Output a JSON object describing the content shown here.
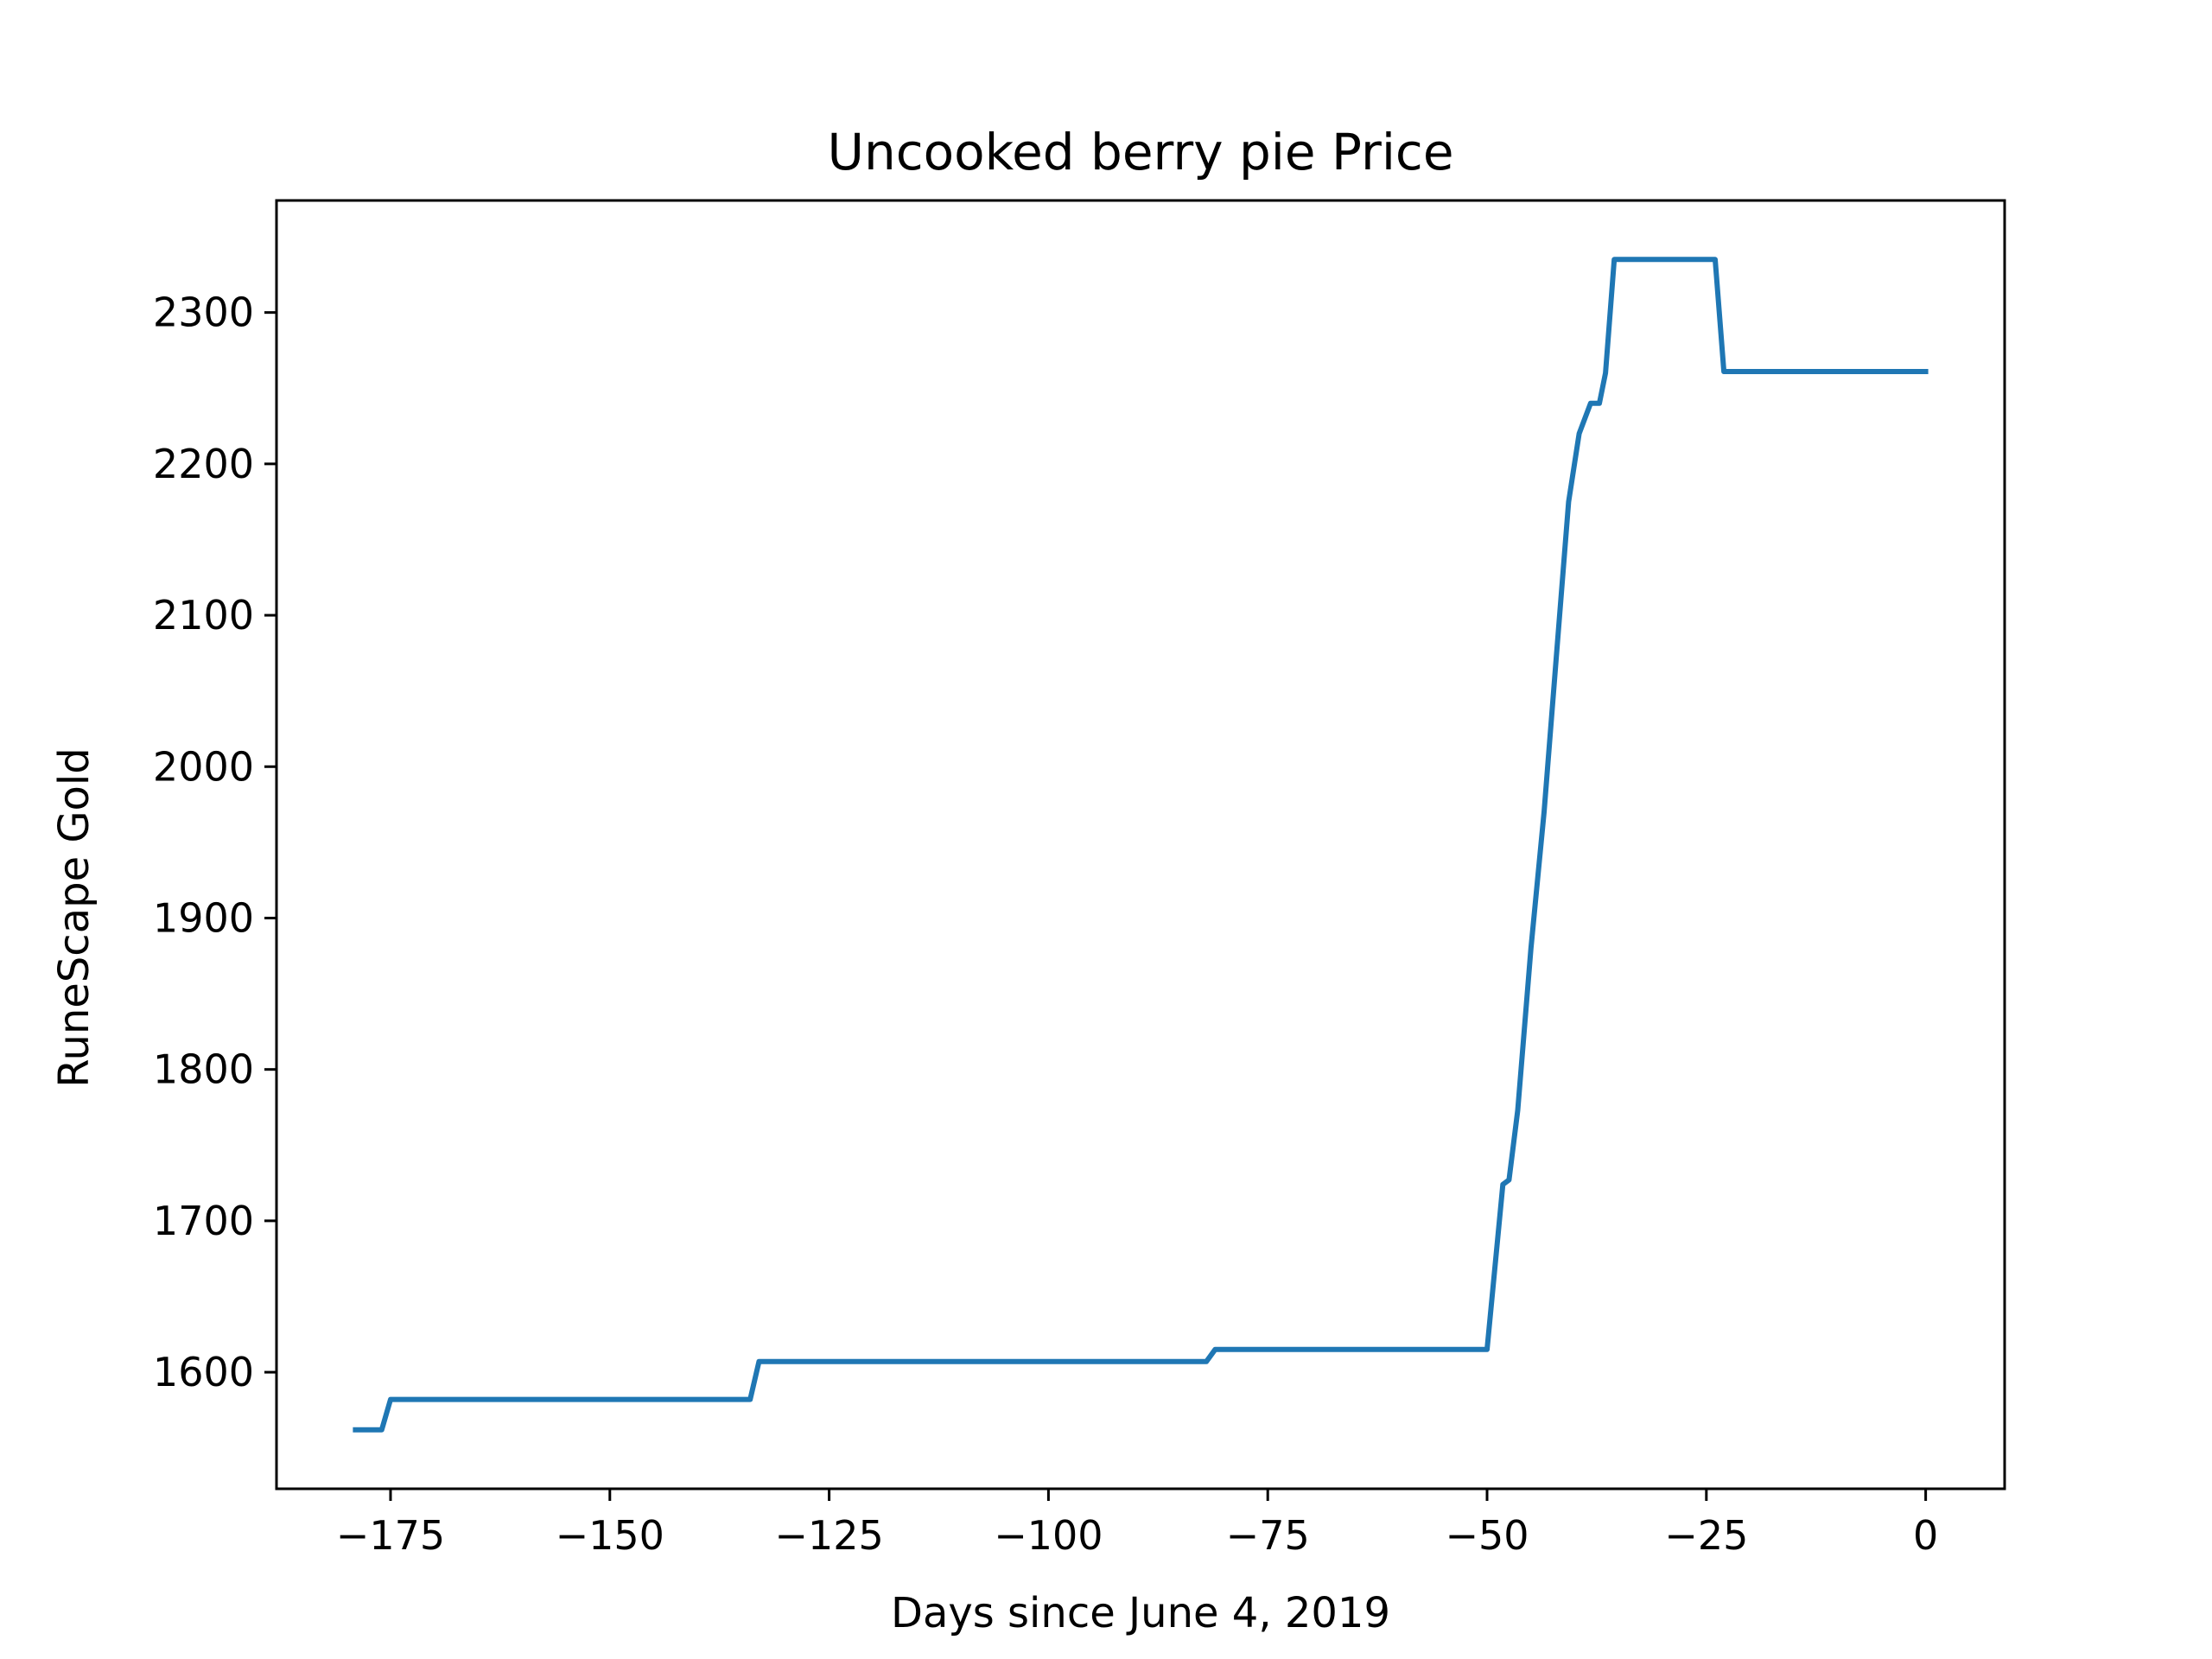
{
  "chart_data": {
    "type": "line",
    "title": "Uncooked berry pie Price",
    "xlabel": "Days since June 4, 2019",
    "ylabel": "RuneScape Gold",
    "xlim": [
      -188,
      9
    ],
    "ylim": [
      1523,
      2374
    ],
    "xticks": [
      -175,
      -150,
      -125,
      -100,
      -75,
      -50,
      -25,
      0
    ],
    "xtick_labels": [
      "−175",
      "−150",
      "−125",
      "−100",
      "−75",
      "−50",
      "−25",
      "0"
    ],
    "yticks": [
      1600,
      1700,
      1800,
      1900,
      2000,
      2100,
      2200,
      2300
    ],
    "ytick_labels": [
      "1600",
      "1700",
      "1800",
      "1900",
      "2000",
      "2100",
      "2200",
      "2300"
    ],
    "grid": false,
    "series": [
      {
        "color": "#1f77b4",
        "x": [
          -179,
          -176,
          -175,
          -134,
          -133,
          -82,
          -81,
          -50,
          -48.2,
          -47.5,
          -46.5,
          -45,
          -43.5,
          -42,
          -40.7,
          -39.5,
          -38.2,
          -37.2,
          -36.5,
          -35.5,
          -34.5,
          -24,
          -23,
          0
        ],
        "y": [
          1562,
          1562,
          1582,
          1582,
          1607,
          1607,
          1615,
          1615,
          1724,
          1727,
          1773,
          1880,
          1970,
          2080,
          2175,
          2220,
          2240,
          2240,
          2260,
          2335,
          2335,
          2335,
          2261,
          2261
        ]
      }
    ]
  }
}
